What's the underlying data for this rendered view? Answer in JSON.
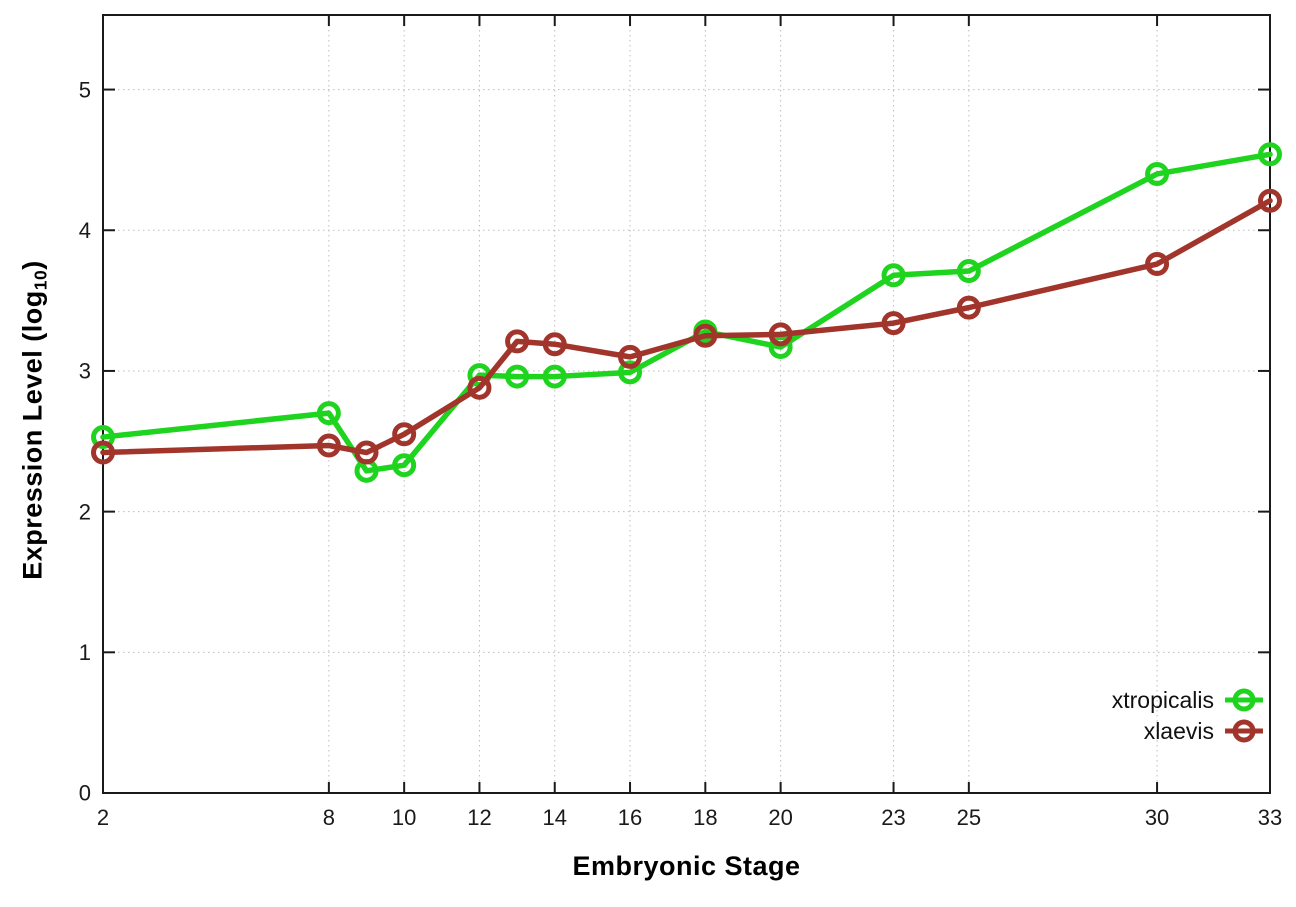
{
  "chart_data": {
    "type": "line",
    "x": [
      2,
      8,
      9,
      10,
      12,
      13,
      14,
      16,
      18,
      20,
      23,
      25,
      30,
      33
    ],
    "series": [
      {
        "name": "xtropicalis",
        "color": "#1ed41e",
        "marker": "open-circle",
        "values": [
          2.53,
          2.7,
          2.29,
          2.33,
          2.97,
          2.96,
          2.96,
          2.99,
          3.28,
          3.17,
          3.68,
          3.71,
          4.4,
          4.54
        ]
      },
      {
        "name": "xlaevis",
        "color": "#a2352b",
        "marker": "open-circle",
        "values": [
          2.42,
          2.47,
          2.42,
          2.55,
          2.88,
          3.21,
          3.19,
          3.1,
          3.25,
          3.26,
          3.34,
          3.45,
          3.76,
          4.21
        ]
      }
    ],
    "title": "",
    "xlabel": "Embryonic Stage",
    "ylabel": "Expression Level (log10)",
    "ylabel_parts": {
      "prefix": "Expression Level (log",
      "sub": "10",
      "suffix": ")"
    },
    "xlim": [
      2,
      33
    ],
    "ylim": [
      0,
      5.53
    ],
    "x_ticks": [
      2,
      8,
      10,
      12,
      14,
      16,
      18,
      20,
      23,
      25,
      30,
      33
    ],
    "y_ticks": [
      0,
      1,
      2,
      3,
      4,
      5
    ],
    "grid": true,
    "grid_style": "dotted",
    "grid_color": "#bdbdbd",
    "axis_color": "#1a1a1a",
    "tick_label_color": "#1a1a1a",
    "legend_position": "bottom-right",
    "legend": [
      "xtropicalis",
      "xlaevis"
    ]
  }
}
